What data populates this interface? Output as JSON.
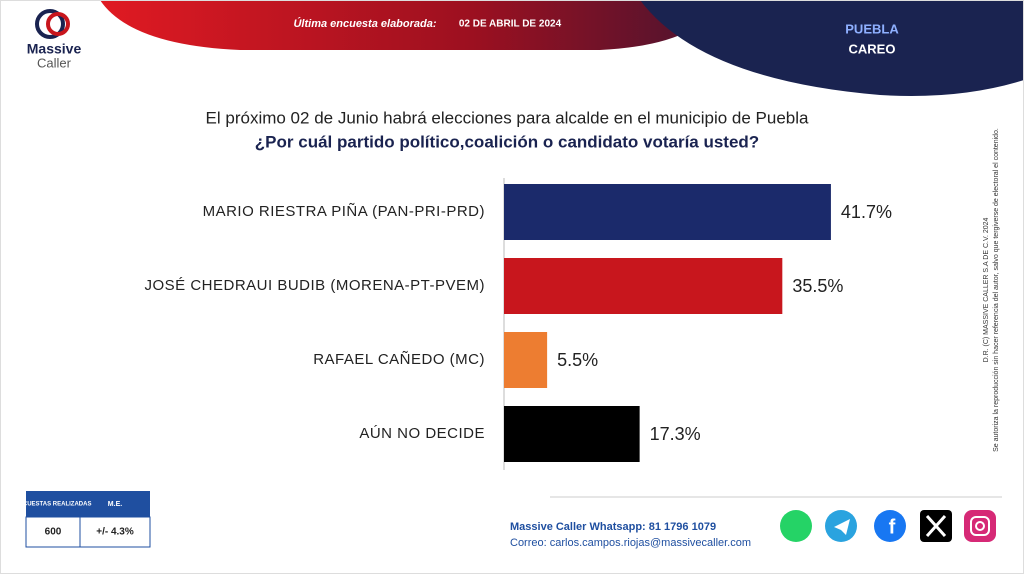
{
  "header": {
    "label": "Última encuesta elaborada:",
    "date": "02 DE ABRIL DE 2024",
    "region": "PUEBLA",
    "subtitle": "CAREO"
  },
  "logo": {
    "line1": "Massive",
    "line2": "Caller"
  },
  "chart_data": {
    "type": "hbar",
    "title": "El próximo 02 de Junio habrá elecciones para alcalde en el municipio de Puebla",
    "subtitle": "¿Por cuál partido político,coalición o candidato votaría usted?",
    "categories": [
      "MARIO RIESTRA PIÑA (PAN-PRI-PRD)",
      "JOSÉ CHEDRAUI BUDIB (MORENA-PT-PVEM)",
      "RAFAEL CAÑEDO (MC)",
      "AÚN NO DECIDE"
    ],
    "values": [
      41.7,
      35.5,
      5.5,
      17.3
    ],
    "value_labels": [
      "41.7%",
      "35.5%",
      "5.5%",
      "17.3%"
    ],
    "colors": [
      "#1b2a6b",
      "#c8161d",
      "#ed7d31",
      "#000000"
    ]
  },
  "info_table": {
    "headers": [
      "ENCUESTAS REALIZADAS",
      "M.E."
    ],
    "values": [
      "600",
      "+/- 4.3%"
    ]
  },
  "footer": {
    "whatsapp": "Massive Caller Whatsapp: 81 1796 1079",
    "email": "Correo: carlos.campos.riojas@massivecaller.com"
  },
  "disclaimer": {
    "line1": "D.R. (C) MASSIVE CALLER S.A DE C.V. 2024",
    "line2": "Se autoriza la reproducción sin hacer referencia del autor, salvo que tergiverse de electoral el contenido."
  }
}
